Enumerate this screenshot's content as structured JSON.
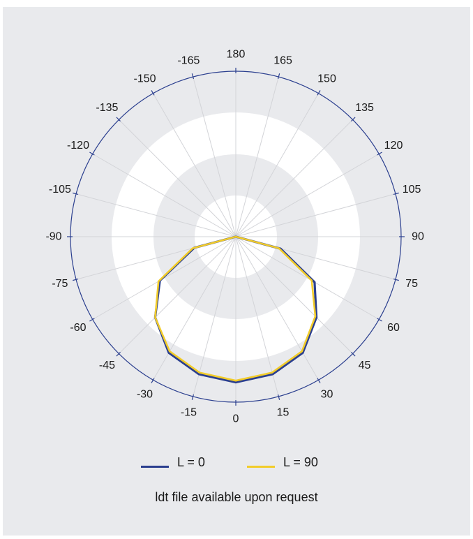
{
  "chart_data": {
    "type": "polar",
    "angle_ticks": [
      180,
      165,
      150,
      135,
      120,
      105,
      90,
      75,
      60,
      45,
      30,
      15,
      0,
      -15,
      -30,
      -45,
      -60,
      -75,
      -90,
      -105,
      -120,
      -135,
      -150,
      -165
    ],
    "angle_convention": "0 at bottom, positive angles clockwise toward the right, 180 at top",
    "grid": true,
    "legend_placement": "bottom-center",
    "series": [
      {
        "name": "L = 0",
        "color": "#2b3f8f",
        "angles": [
          -90,
          -75,
          -60,
          -45,
          -30,
          -15,
          0,
          15,
          30,
          45,
          60,
          75,
          90
        ],
        "values": [
          0,
          0.26,
          0.53,
          0.69,
          0.81,
          0.86,
          0.88,
          0.86,
          0.81,
          0.69,
          0.55,
          0.28,
          0
        ]
      },
      {
        "name": "L = 90",
        "color": "#f2cc2a",
        "angles": [
          -90,
          -75,
          -60,
          -45,
          -30,
          -15,
          0,
          15,
          30,
          45,
          60,
          75,
          90
        ],
        "values": [
          0,
          0.27,
          0.54,
          0.69,
          0.8,
          0.85,
          0.87,
          0.85,
          0.8,
          0.68,
          0.53,
          0.27,
          0
        ]
      }
    ]
  },
  "note": "ldt file available upon request"
}
